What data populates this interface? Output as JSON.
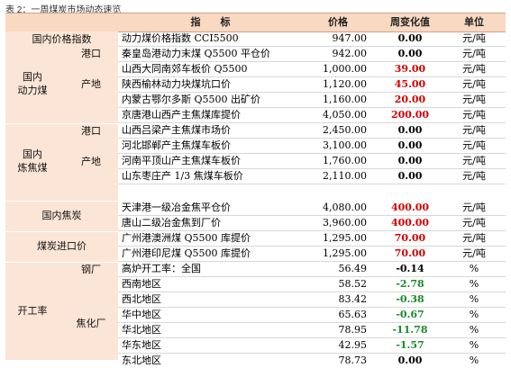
{
  "caption": "表 2：一周煤炭市场动态速览",
  "header": {
    "indicator": "指　　标",
    "price": "价格",
    "change": "周变化值",
    "unit": "单位"
  },
  "left": {
    "domestic_index": "国内价格指数",
    "steam_coal": "国内\n动力煤",
    "port": "港口",
    "origin": "产地",
    "coking_coal": "国内\n炼焦煤",
    "port2": "港口",
    "origin2": "产地",
    "coke": "国内焦炭",
    "import": "煤炭进口价",
    "operating_rate": "开工率",
    "steel_mill": "钢厂",
    "coking_plant": "焦化厂"
  },
  "rows": [
    {
      "name": "动力煤价格指数 CCI5500",
      "price": "947.00",
      "change": "0.00",
      "color": "black",
      "unit": "元/吨"
    },
    {
      "name": "秦皇岛港动力末煤 Q5500 平仓价",
      "price": "942.00",
      "change": "0.00",
      "color": "black",
      "unit": "元/吨"
    },
    {
      "name": "山西大同南郊车板价 Q5500",
      "price": "1,000.00",
      "change": "39.00",
      "color": "red",
      "unit": "元/吨"
    },
    {
      "name": "陕西榆林动力块煤坑口价",
      "price": "1,120.00",
      "change": "45.00",
      "color": "red",
      "unit": "元/吨"
    },
    {
      "name": "内蒙古鄂尔多斯 Q5500 出矿价",
      "price": "1,160.00",
      "change": "20.00",
      "color": "red",
      "unit": "元/吨"
    },
    {
      "name": "京唐港山西产主焦煤库提价",
      "price": "4,050.00",
      "change": "200.00",
      "color": "red",
      "unit": "元/吨"
    },
    {
      "name": "山西吕梁产主焦煤市场价",
      "price": "2,450.00",
      "change": "0.00",
      "color": "black",
      "unit": "元/吨"
    },
    {
      "name": "河北邯郸产主焦煤车板价",
      "price": "3,100.00",
      "change": "0.00",
      "color": "black",
      "unit": "元/吨"
    },
    {
      "name": "河南平顶山产主焦煤车板价",
      "price": "1,760.00",
      "change": "0.00",
      "color": "black",
      "unit": "元/吨"
    },
    {
      "name": "山东枣庄产 1/3 焦煤车板价",
      "price": "2,110.00",
      "change": "0.00",
      "color": "black",
      "unit": "元/吨"
    },
    {
      "name": "天津港一级冶金焦平仓价",
      "price": "4,080.00",
      "change": "400.00",
      "color": "red",
      "unit": "元/吨"
    },
    {
      "name": "唐山二级冶金焦到厂价",
      "price": "3,960.00",
      "change": "400.00",
      "color": "red",
      "unit": "元/吨"
    },
    {
      "name": "广州港澳洲煤 Q5500 库提价",
      "price": "1,295.00",
      "change": "70.00",
      "color": "red",
      "unit": "元/吨"
    },
    {
      "name": "广州港印尼煤 Q5500 库提价",
      "price": "1,295.00",
      "change": "70.00",
      "color": "red",
      "unit": "元/吨"
    },
    {
      "name": "高炉开工率：全国",
      "price": "56.49",
      "change": "-0.14",
      "color": "black",
      "unit": "%"
    },
    {
      "name": "西南地区",
      "price": "58.52",
      "change": "-2.78",
      "color": "green",
      "unit": "%"
    },
    {
      "name": "西北地区",
      "price": "83.42",
      "change": "-0.38",
      "color": "green",
      "unit": "%"
    },
    {
      "name": "华中地区",
      "price": "65.63",
      "change": "-0.67",
      "color": "green",
      "unit": "%"
    },
    {
      "name": "华北地区",
      "price": "78.95",
      "change": "-11.78",
      "color": "green",
      "unit": "%"
    },
    {
      "name": "华东地区",
      "price": "42.95",
      "change": "-1.57",
      "color": "green",
      "unit": "%"
    },
    {
      "name": "东北地区",
      "price": "78.73",
      "change": "0.00",
      "color": "black",
      "unit": "%"
    }
  ]
}
